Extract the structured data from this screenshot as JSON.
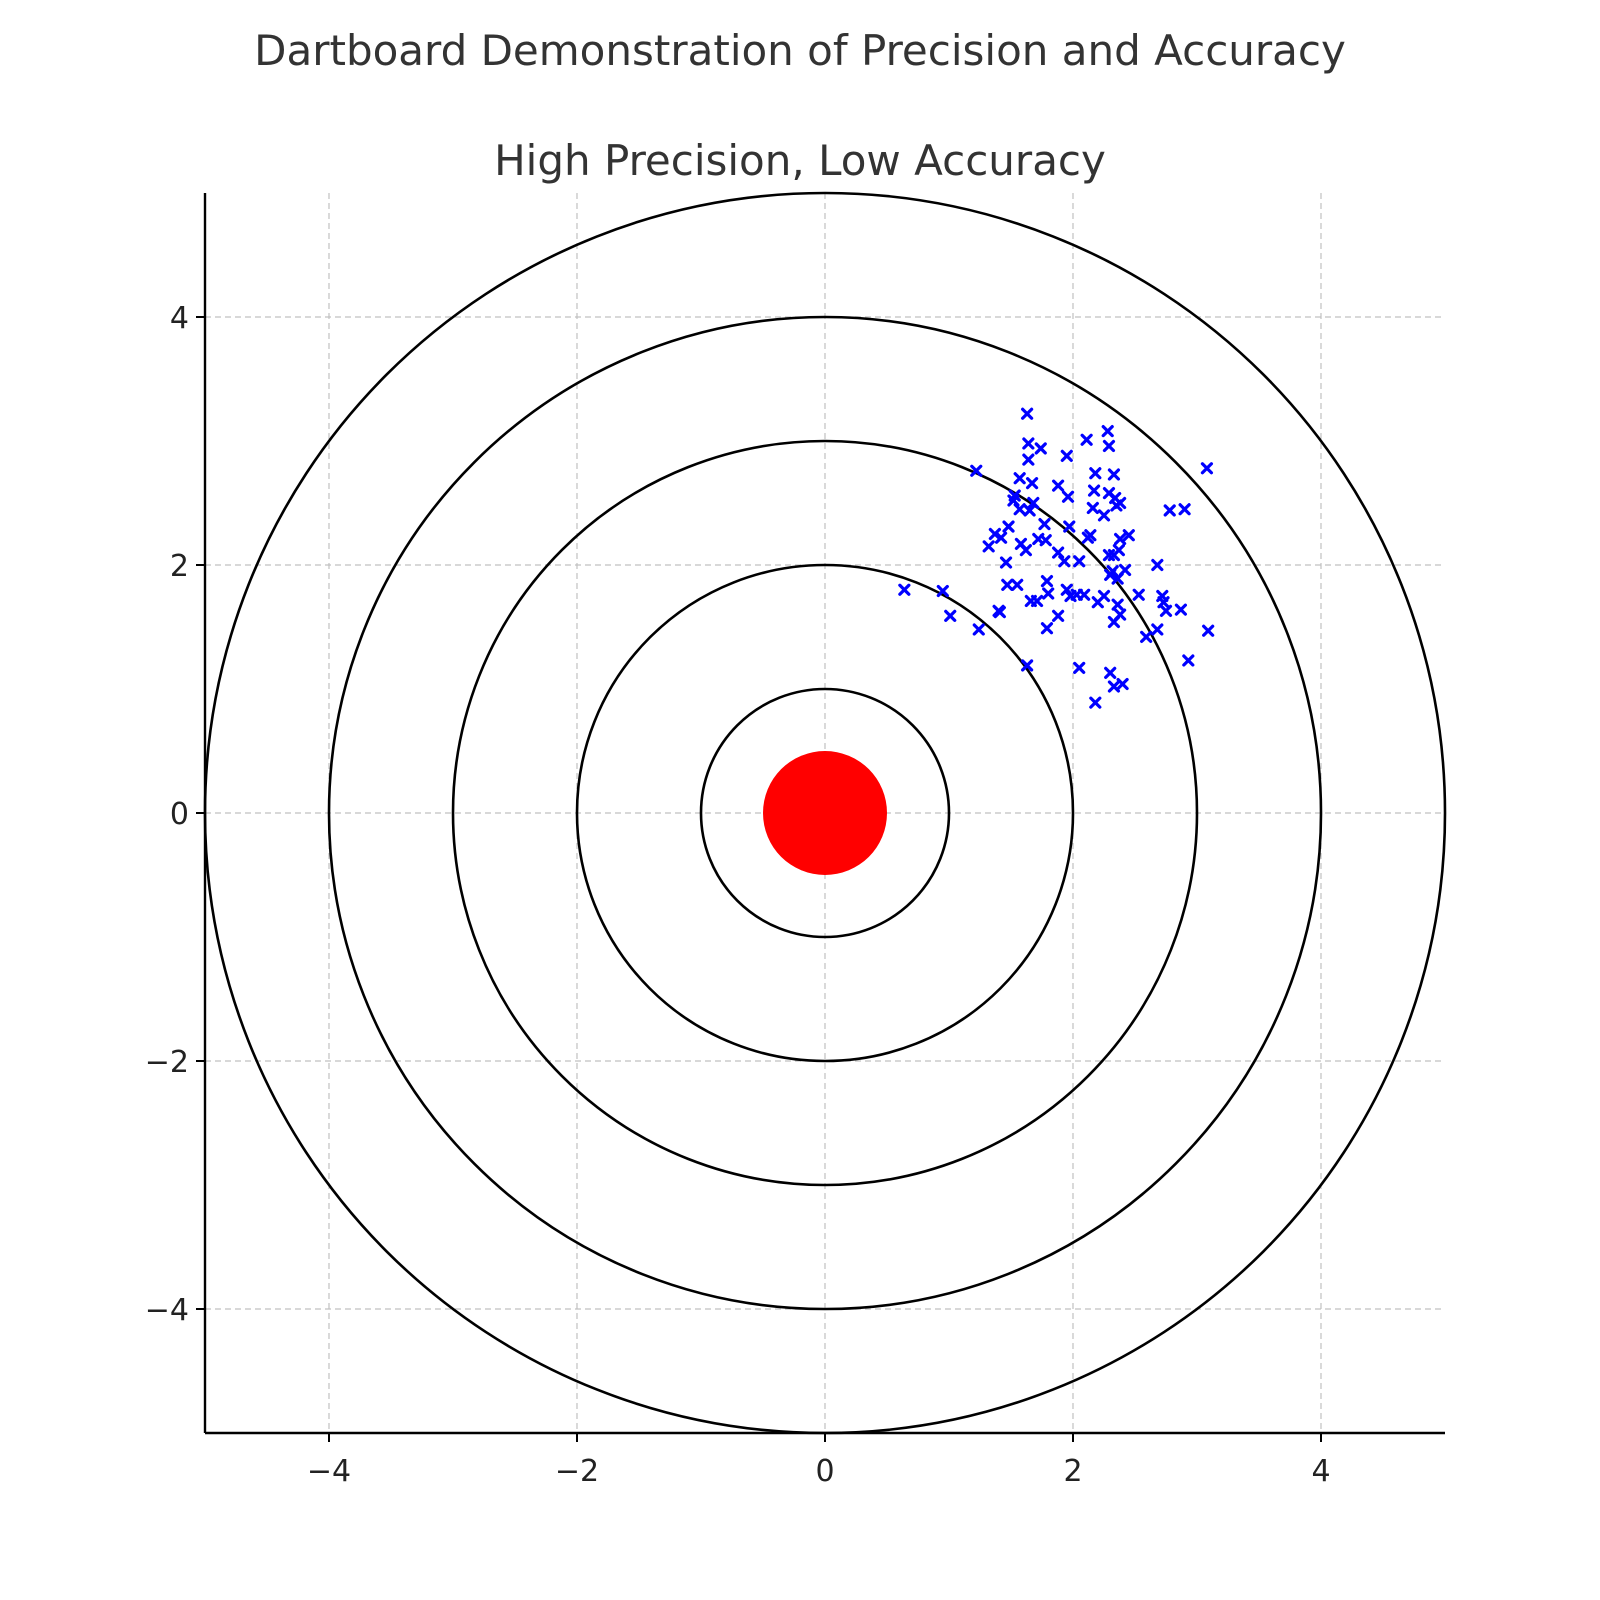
{
  "figure": {
    "suptitle": "Dartboard Demonstration of Precision and Accuracy"
  },
  "chart_data": {
    "type": "scatter",
    "title": "High Precision, Low Accuracy",
    "xlabel": "",
    "ylabel": "",
    "xlim": [
      -5,
      5
    ],
    "ylim": [
      -5,
      5
    ],
    "xticks": [
      -4,
      -2,
      0,
      2,
      4
    ],
    "yticks": [
      -4,
      -2,
      0,
      2,
      4
    ],
    "xtick_labels": [
      "−4",
      "−2",
      "0",
      "2",
      "4"
    ],
    "ytick_labels": [
      "−4",
      "−2",
      "0",
      "2",
      "4"
    ],
    "grid": true,
    "rings": [
      1,
      2,
      3,
      4,
      5
    ],
    "ring_color": "#000000",
    "bullseye": {
      "radius": 0.5,
      "color": "#ff0000"
    },
    "series": [
      {
        "marker": "x",
        "color": "#0000ff",
        "points": [
          [
            1.63,
            3.22
          ],
          [
            1.64,
            2.98
          ],
          [
            1.64,
            2.85
          ],
          [
            1.74,
            2.94
          ],
          [
            1.67,
            2.66
          ],
          [
            1.57,
            2.7
          ],
          [
            1.22,
            2.76
          ],
          [
            1.53,
            2.56
          ],
          [
            1.57,
            2.45
          ],
          [
            1.68,
            2.5
          ],
          [
            1.65,
            2.44
          ],
          [
            1.52,
            2.52
          ],
          [
            1.48,
            2.31
          ],
          [
            1.37,
            2.25
          ],
          [
            1.42,
            2.22
          ],
          [
            1.32,
            2.15
          ],
          [
            1.58,
            2.17
          ],
          [
            1.62,
            2.12
          ],
          [
            1.72,
            2.21
          ],
          [
            1.78,
            2.2
          ],
          [
            1.77,
            2.33
          ],
          [
            1.46,
            2.02
          ],
          [
            1.47,
            1.84
          ],
          [
            1.55,
            1.84
          ],
          [
            1.4,
            1.63
          ],
          [
            1.41,
            1.62
          ],
          [
            0.64,
            1.8
          ],
          [
            0.95,
            1.79
          ],
          [
            1.01,
            1.59
          ],
          [
            1.24,
            1.48
          ],
          [
            1.71,
            1.71
          ],
          [
            1.66,
            1.71
          ],
          [
            1.79,
            1.87
          ],
          [
            1.8,
            1.77
          ],
          [
            1.79,
            1.49
          ],
          [
            1.88,
            1.59
          ],
          [
            1.63,
            1.19
          ],
          [
            1.95,
            2.88
          ],
          [
            1.96,
            2.55
          ],
          [
            1.88,
            2.64
          ],
          [
            2.11,
            3.01
          ],
          [
            1.97,
            2.31
          ],
          [
            1.88,
            2.1
          ],
          [
            1.93,
            2.03
          ],
          [
            2.05,
            2.03
          ],
          [
            2.12,
            2.22
          ],
          [
            2.14,
            2.24
          ],
          [
            2.18,
            2.74
          ],
          [
            2.17,
            2.6
          ],
          [
            2.16,
            2.46
          ],
          [
            2.25,
            2.4
          ],
          [
            2.28,
            3.08
          ],
          [
            2.29,
            2.96
          ],
          [
            2.29,
            2.58
          ],
          [
            2.33,
            2.73
          ],
          [
            2.34,
            2.54
          ],
          [
            2.38,
            2.5
          ],
          [
            2.35,
            2.48
          ],
          [
            2.45,
            2.24
          ],
          [
            2.38,
            2.21
          ],
          [
            2.37,
            2.12
          ],
          [
            2.29,
            2.08
          ],
          [
            2.33,
            2.08
          ],
          [
            2.32,
            1.95
          ],
          [
            2.3,
            1.92
          ],
          [
            2.42,
            1.96
          ],
          [
            2.36,
            1.89
          ],
          [
            1.95,
            1.8
          ],
          [
            1.98,
            1.75
          ],
          [
            2.03,
            1.76
          ],
          [
            2.09,
            1.76
          ],
          [
            2.2,
            1.7
          ],
          [
            2.25,
            1.75
          ],
          [
            2.36,
            1.68
          ],
          [
            2.38,
            1.6
          ],
          [
            2.33,
            1.54
          ],
          [
            2.53,
            1.76
          ],
          [
            2.59,
            1.42
          ],
          [
            2.68,
            1.48
          ],
          [
            2.68,
            2.0
          ],
          [
            2.72,
            1.75
          ],
          [
            2.73,
            1.7
          ],
          [
            2.75,
            1.63
          ],
          [
            2.78,
            2.44
          ],
          [
            2.9,
            2.45
          ],
          [
            2.87,
            1.64
          ],
          [
            2.93,
            1.23
          ],
          [
            3.08,
            2.78
          ],
          [
            3.09,
            1.47
          ],
          [
            2.05,
            1.17
          ],
          [
            2.18,
            0.89
          ],
          [
            2.3,
            1.13
          ],
          [
            2.33,
            1.02
          ],
          [
            2.4,
            1.04
          ]
        ]
      }
    ]
  }
}
